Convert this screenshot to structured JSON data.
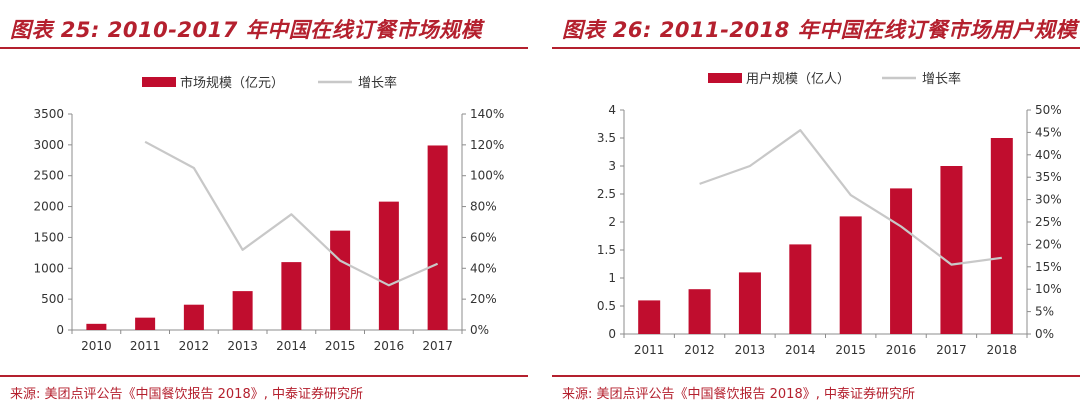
{
  "chart_data": [
    {
      "type": "bar",
      "title": "图表 25: 2010-2017 年中国在线订餐市场规模",
      "source": "来源: 美团点评公告《中国餐饮报告 2018》, 中泰证券研究所",
      "categories": [
        "2010",
        "2011",
        "2012",
        "2013",
        "2014",
        "2015",
        "2016",
        "2017"
      ],
      "series": [
        {
          "name": "市场规模（亿元）",
          "type": "bar",
          "axis": "left",
          "values": [
            100,
            200,
            410,
            630,
            1100,
            1610,
            2080,
            2990
          ]
        },
        {
          "name": "增长率",
          "type": "line",
          "axis": "right",
          "values": [
            null,
            122,
            105,
            52,
            75,
            45,
            29,
            43
          ]
        }
      ],
      "y_left": {
        "min": 0,
        "max": 3500,
        "step": 500,
        "ticks": [
          "0",
          "500",
          "1000",
          "1500",
          "2000",
          "2500",
          "3000",
          "3500"
        ]
      },
      "y_right": {
        "min": 0,
        "max": 140,
        "step": 20,
        "ticks": [
          "0%",
          "20%",
          "40%",
          "60%",
          "80%",
          "100%",
          "120%",
          "140%"
        ]
      },
      "colors": {
        "bar": "#c00d2e",
        "line": "#c8c8c8",
        "accent": "#b4202e"
      },
      "legend_position": "top-center",
      "grid": false
    },
    {
      "type": "bar",
      "title": "图表 26: 2011-2018 年中国在线订餐市场用户规模",
      "source": "来源: 美团点评公告《中国餐饮报告 2018》, 中泰证券研究所",
      "categories": [
        "2011",
        "2012",
        "2013",
        "2014",
        "2015",
        "2016",
        "2017",
        "2018"
      ],
      "series": [
        {
          "name": "用户规模（亿人）",
          "type": "bar",
          "axis": "left",
          "values": [
            0.6,
            0.8,
            1.1,
            1.6,
            2.1,
            2.6,
            3.0,
            3.5
          ]
        },
        {
          "name": "增长率",
          "type": "line",
          "axis": "right",
          "values": [
            null,
            33.5,
            37.5,
            45.5,
            31,
            24,
            15.5,
            17
          ]
        }
      ],
      "y_left": {
        "min": 0,
        "max": 4,
        "step": 0.5,
        "ticks": [
          "0",
          "0.5",
          "1",
          "1.5",
          "2",
          "2.5",
          "3",
          "3.5",
          "4"
        ]
      },
      "y_right": {
        "min": 0,
        "max": 50,
        "step": 5,
        "ticks": [
          "0%",
          "5%",
          "10%",
          "15%",
          "20%",
          "25%",
          "30%",
          "35%",
          "40%",
          "45%",
          "50%"
        ]
      },
      "colors": {
        "bar": "#c00d2e",
        "line": "#c8c8c8",
        "accent": "#b4202e"
      },
      "legend_position": "top-center",
      "grid": false
    }
  ]
}
